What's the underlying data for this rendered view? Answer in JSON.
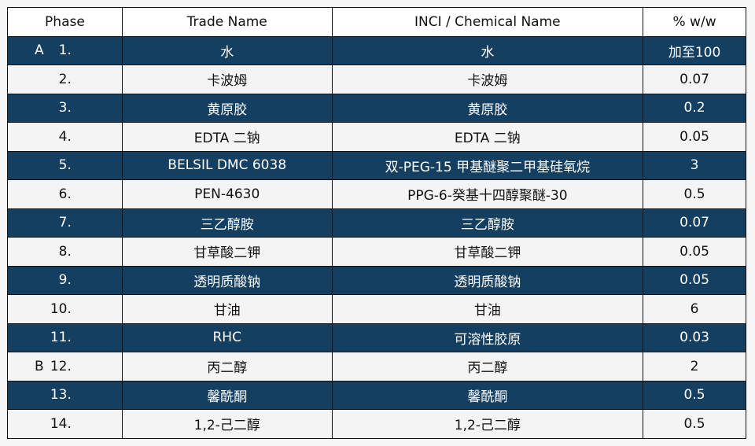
{
  "headers": [
    "Phase",
    "Trade Name",
    "INCI / Chemical Name",
    "% w/w"
  ],
  "colors": {
    "dark_row": "#143f61",
    "light_row": "#f4f4f4"
  },
  "rows": [
    {
      "phase": "A",
      "num": "1.",
      "trade": "水",
      "inci": "水",
      "pct": "加至100",
      "style": "dark"
    },
    {
      "phase": "",
      "num": "2.",
      "trade": "卡波姆",
      "inci": "卡波姆",
      "pct": "0.07",
      "style": "light"
    },
    {
      "phase": "",
      "num": "3.",
      "trade": "黄原胶",
      "inci": "黄原胶",
      "pct": "0.2",
      "style": "dark"
    },
    {
      "phase": "",
      "num": "4.",
      "trade": "EDTA 二钠",
      "inci": "EDTA 二钠",
      "pct": "0.05",
      "style": "light"
    },
    {
      "phase": "",
      "num": "5.",
      "trade": "BELSIL DMC 6038",
      "inci": "双-PEG-15 甲基醚聚二甲基硅氧烷",
      "pct": "3",
      "style": "dark"
    },
    {
      "phase": "",
      "num": "6.",
      "trade": "PEN-4630",
      "inci": "PPG-6-癸基十四醇聚醚-30",
      "pct": "0.5",
      "style": "light"
    },
    {
      "phase": "",
      "num": "7.",
      "trade": "三乙醇胺",
      "inci": "三乙醇胺",
      "pct": "0.07",
      "style": "dark"
    },
    {
      "phase": "",
      "num": "8.",
      "trade": "甘草酸二钾",
      "inci": "甘草酸二钾",
      "pct": "0.05",
      "style": "light"
    },
    {
      "phase": "",
      "num": "9.",
      "trade": "透明质酸钠",
      "inci": "透明质酸钠",
      "pct": "0.05",
      "style": "dark"
    },
    {
      "phase": "",
      "num": "10.",
      "trade": "甘油",
      "inci": "甘油",
      "pct": "6",
      "style": "light"
    },
    {
      "phase": "",
      "num": "11.",
      "trade": "RHC",
      "inci": "可溶性胶原",
      "pct": "0.03",
      "style": "dark"
    },
    {
      "phase": "B",
      "num": "12.",
      "trade": "丙二醇",
      "inci": "丙二醇",
      "pct": "2",
      "style": "light"
    },
    {
      "phase": "",
      "num": "13.",
      "trade": "馨酰酮",
      "inci": "馨酰酮",
      "pct": "0.5",
      "style": "dark"
    },
    {
      "phase": "",
      "num": "14.",
      "trade": "1,2-己二醇",
      "inci": "1,2-己二醇",
      "pct": "0.5",
      "style": "light"
    }
  ]
}
